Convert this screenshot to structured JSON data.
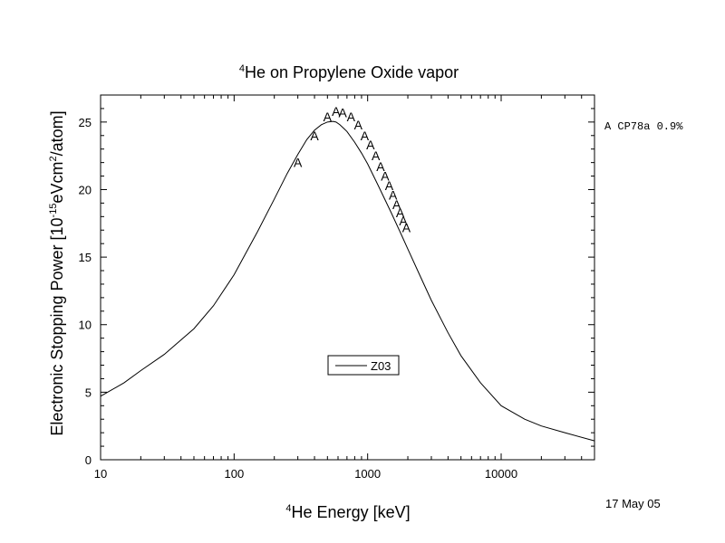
{
  "chart_data": {
    "type": "line",
    "title": {
      "sup": "4",
      "text": "He on Propylene Oxide vapor"
    },
    "xlabel": {
      "sup": "4",
      "text": "He Energy [keV]"
    },
    "ylabel": {
      "pre": "Electronic Stopping Power [10",
      "sup1": "-15",
      "mid": "eVcm",
      "sup2": "2",
      "post": "/atom]"
    },
    "x_scale": "log",
    "xlim": [
      10,
      50000
    ],
    "ylim": [
      0,
      27
    ],
    "x_ticks": [
      10,
      100,
      1000,
      10000
    ],
    "x_tick_labels": [
      "10",
      "100",
      "1000",
      "10000"
    ],
    "y_ticks": [
      0,
      5,
      10,
      15,
      20,
      25
    ],
    "y_tick_labels": [
      "0",
      "5",
      "10",
      "15",
      "20",
      "25"
    ],
    "grid": false,
    "legend": {
      "position": "bottom-center",
      "entries": [
        "Z03"
      ]
    },
    "series": [
      {
        "name": "Z03",
        "style": "line",
        "x": [
          10,
          15,
          20,
          30,
          50,
          70,
          100,
          150,
          200,
          250,
          300,
          350,
          400,
          450,
          500,
          550,
          580,
          620,
          700,
          800,
          900,
          1000,
          1200,
          1500,
          1800,
          2000,
          2500,
          3000,
          4000,
          5000,
          7000,
          10000,
          15000,
          20000,
          30000,
          50000
        ],
        "y": [
          4.7,
          5.7,
          6.6,
          7.8,
          9.7,
          11.4,
          13.7,
          16.9,
          19.3,
          21.2,
          22.6,
          23.7,
          24.4,
          24.8,
          25.0,
          25.05,
          25.0,
          24.8,
          24.3,
          23.5,
          22.7,
          21.9,
          20.3,
          18.3,
          16.6,
          15.6,
          13.5,
          11.8,
          9.4,
          7.7,
          5.7,
          4.0,
          3.0,
          2.5,
          2.0,
          1.4
        ]
      },
      {
        "name": "A CP78a 0.9%",
        "style": "marker",
        "marker": "A",
        "x": [
          300,
          400,
          500,
          580,
          650,
          750,
          850,
          950,
          1050,
          1150,
          1250,
          1350,
          1450,
          1550,
          1650,
          1750,
          1850,
          1950
        ],
        "y": [
          22.0,
          24.0,
          25.4,
          25.8,
          25.7,
          25.4,
          24.8,
          24.0,
          23.3,
          22.5,
          21.7,
          21.0,
          20.3,
          19.6,
          18.9,
          18.3,
          17.7,
          17.2
        ]
      }
    ],
    "side_legend": "A CP78a 0.9%",
    "date_stamp": "17 May 05"
  }
}
